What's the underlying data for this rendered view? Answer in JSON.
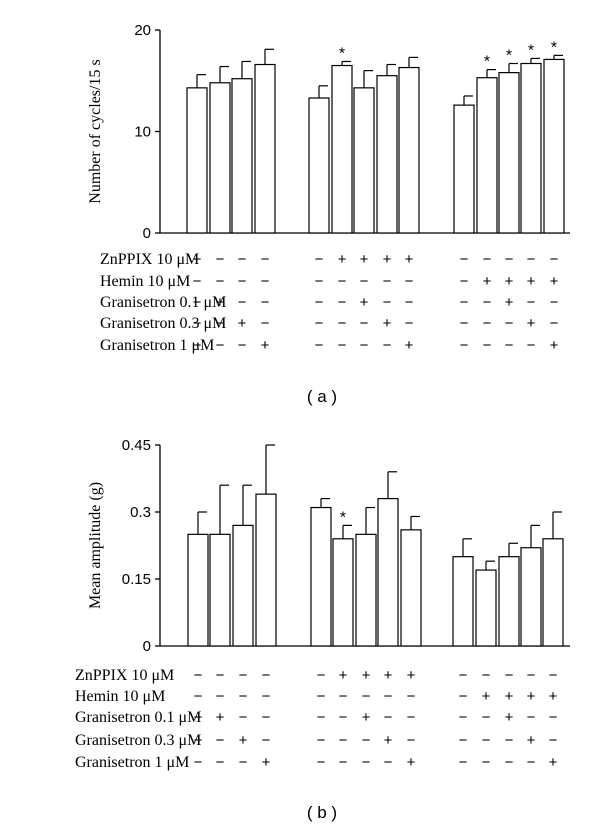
{
  "chart_data": [
    {
      "type": "bar",
      "caption": "( a )",
      "ylabel": "Number of cycles/15 s",
      "ylim": [
        0,
        20
      ],
      "yticks": [
        "0",
        "10",
        "20"
      ],
      "groups": [
        {
          "values": [
            14.3,
            14.8,
            15.2,
            16.6
          ],
          "errors": [
            1.3,
            1.6,
            1.7,
            1.5
          ],
          "stars": [
            false,
            false,
            false,
            false
          ]
        },
        {
          "values": [
            13.3,
            16.5,
            14.3,
            15.5,
            16.3
          ],
          "errors": [
            1.2,
            0.4,
            1.7,
            1.1,
            1.0
          ],
          "stars": [
            false,
            true,
            false,
            false,
            false
          ]
        },
        {
          "values": [
            12.6,
            15.3,
            15.8,
            16.7,
            17.1
          ],
          "errors": [
            0.9,
            0.8,
            0.9,
            0.5,
            0.4
          ],
          "stars": [
            false,
            true,
            true,
            true,
            true
          ]
        }
      ],
      "conditions": [
        {
          "label": "ZnPPIX 10 μM",
          "signs": [
            [
              "−",
              "−",
              "−",
              "−"
            ],
            [
              "−",
              "+",
              "+",
              "+",
              "+"
            ],
            [
              "−",
              "−",
              "−",
              "−",
              "−"
            ]
          ]
        },
        {
          "label": "Hemin 10 μM",
          "signs": [
            [
              "−",
              "−",
              "−",
              "−"
            ],
            [
              "−",
              "−",
              "−",
              "−",
              "−"
            ],
            [
              "−",
              "+",
              "+",
              "+",
              "+"
            ]
          ]
        },
        {
          "label": "Granisetron 0.1 μM",
          "signs": [
            [
              "−",
              "+",
              "−",
              "−"
            ],
            [
              "−",
              "−",
              "+",
              "−",
              "−"
            ],
            [
              "−",
              "−",
              "+",
              "−",
              "−"
            ]
          ]
        },
        {
          "label": "Granisetron 0.3 μM",
          "signs": [
            [
              "−",
              "−",
              "+",
              "−"
            ],
            [
              "−",
              "−",
              "−",
              "+",
              "−"
            ],
            [
              "−",
              "−",
              "−",
              "+",
              "−"
            ]
          ]
        },
        {
          "label": "Granisetron 1 μM",
          "signs": [
            [
              "−",
              "−",
              "−",
              "+"
            ],
            [
              "−",
              "−",
              "−",
              "−",
              "+"
            ],
            [
              "−",
              "−",
              "−",
              "−",
              "+"
            ]
          ]
        }
      ]
    },
    {
      "type": "bar",
      "caption": "( b )",
      "ylabel": "Mean amplitude (g)",
      "ylim": [
        0,
        0.45
      ],
      "yticks": [
        "0",
        "0.15",
        "0.3",
        "0.45"
      ],
      "groups": [
        {
          "values": [
            0.25,
            0.25,
            0.27,
            0.34
          ],
          "errors": [
            0.05,
            0.11,
            0.09,
            0.11
          ],
          "stars": [
            false,
            false,
            false,
            false
          ]
        },
        {
          "values": [
            0.31,
            0.24,
            0.25,
            0.33,
            0.26
          ],
          "errors": [
            0.02,
            0.03,
            0.06,
            0.06,
            0.03
          ],
          "stars": [
            false,
            true,
            false,
            false,
            false
          ]
        },
        {
          "values": [
            0.2,
            0.17,
            0.2,
            0.22,
            0.24
          ],
          "errors": [
            0.04,
            0.02,
            0.03,
            0.05,
            0.06
          ],
          "stars": [
            false,
            false,
            false,
            false,
            false
          ]
        }
      ],
      "conditions": [
        {
          "label": "ZnPPIX 10 μM",
          "signs": [
            [
              "−",
              "−",
              "−",
              "−"
            ],
            [
              "−",
              "+",
              "+",
              "+",
              "+"
            ],
            [
              "−",
              "−",
              "−",
              "−",
              "−"
            ]
          ]
        },
        {
          "label": "Hemin 10 μM",
          "signs": [
            [
              "−",
              "−",
              "−",
              "−"
            ],
            [
              "−",
              "−",
              "−",
              "−",
              "−"
            ],
            [
              "−",
              "+",
              "+",
              "+",
              "+"
            ]
          ]
        },
        {
          "label": "Granisetron 0.1 μM",
          "signs": [
            [
              "−",
              "+",
              "−",
              "−"
            ],
            [
              "−",
              "−",
              "+",
              "−",
              "−"
            ],
            [
              "−",
              "−",
              "+",
              "−",
              "−"
            ]
          ]
        },
        {
          "label": "Granisetron 0.3 μM",
          "signs": [
            [
              "−",
              "−",
              "+",
              "−"
            ],
            [
              "−",
              "−",
              "−",
              "+",
              "−"
            ],
            [
              "−",
              "−",
              "−",
              "+",
              "−"
            ]
          ]
        },
        {
          "label": "Granisetron 1 μM",
          "signs": [
            [
              "−",
              "−",
              "−",
              "+"
            ],
            [
              "−",
              "−",
              "−",
              "−",
              "+"
            ],
            [
              "−",
              "−",
              "−",
              "−",
              "+"
            ]
          ]
        }
      ]
    }
  ]
}
